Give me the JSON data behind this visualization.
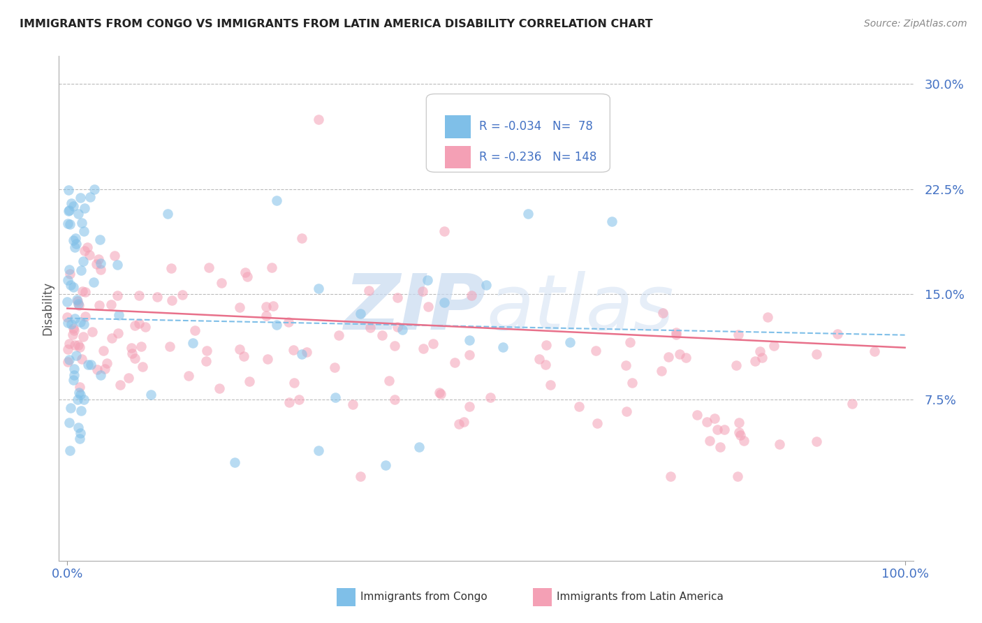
{
  "title": "IMMIGRANTS FROM CONGO VS IMMIGRANTS FROM LATIN AMERICA DISABILITY CORRELATION CHART",
  "source": "Source: ZipAtlas.com",
  "ylabel": "Disability",
  "xlim": [
    0.0,
    1.0
  ],
  "ylim": [
    -0.04,
    0.32
  ],
  "yticks": [
    0.075,
    0.15,
    0.225,
    0.3
  ],
  "ytick_labels": [
    "7.5%",
    "15.0%",
    "22.5%",
    "30.0%"
  ],
  "xticks": [
    0.0,
    1.0
  ],
  "xtick_labels": [
    "0.0%",
    "100.0%"
  ],
  "legend1_R": "-0.034",
  "legend1_N": "78",
  "legend2_R": "-0.236",
  "legend2_N": "148",
  "legend_label1": "Immigrants from Congo",
  "legend_label2": "Immigrants from Latin America",
  "background_color": "#ffffff",
  "grid_color": "#bbbbbb",
  "title_color": "#222222",
  "axis_color": "#4472c4",
  "watermark_color": "#c8daf0",
  "scatter_color_congo": "#7fbfe8",
  "scatter_color_latin": "#f4a0b5",
  "line_color_congo": "#7fbfe8",
  "line_color_latin": "#e8708a"
}
